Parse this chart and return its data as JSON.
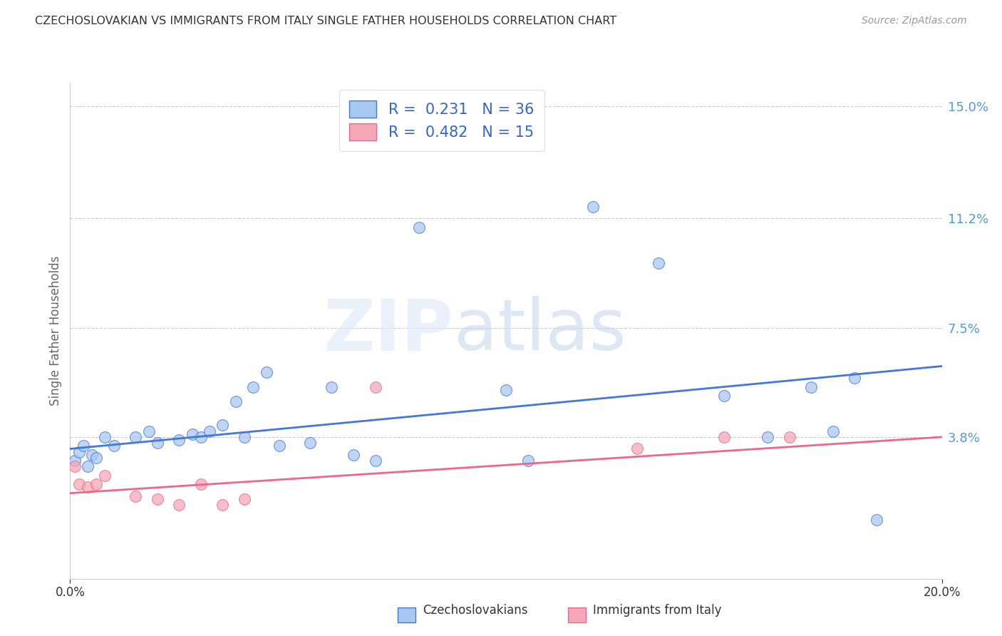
{
  "title": "CZECHOSLOVAKIAN VS IMMIGRANTS FROM ITALY SINGLE FATHER HOUSEHOLDS CORRELATION CHART",
  "source": "Source: ZipAtlas.com",
  "ylabel": "Single Father Households",
  "right_ytick_labels": [
    "15.0%",
    "11.2%",
    "7.5%",
    "3.8%"
  ],
  "right_ytick_values": [
    0.15,
    0.112,
    0.075,
    0.038
  ],
  "xmin": 0.0,
  "xmax": 0.2,
  "ymin": -0.01,
  "ymax": 0.158,
  "blue_fill": "#A8C8F0",
  "pink_fill": "#F4A8B8",
  "line_blue": "#4477DD",
  "line_pink": "#EE6688",
  "legend_R1": "0.231",
  "legend_N1": "36",
  "legend_R2": "0.482",
  "legend_N2": "15",
  "blue_scatter_x": [
    0.001,
    0.002,
    0.003,
    0.004,
    0.005,
    0.006,
    0.008,
    0.01,
    0.015,
    0.018,
    0.02,
    0.025,
    0.028,
    0.03,
    0.032,
    0.035,
    0.038,
    0.04,
    0.042,
    0.045,
    0.048,
    0.055,
    0.06,
    0.065,
    0.07,
    0.08,
    0.1,
    0.105,
    0.12,
    0.135,
    0.15,
    0.16,
    0.17,
    0.175,
    0.18,
    0.185
  ],
  "blue_scatter_y": [
    0.03,
    0.033,
    0.035,
    0.028,
    0.032,
    0.031,
    0.038,
    0.035,
    0.038,
    0.04,
    0.036,
    0.037,
    0.039,
    0.038,
    0.04,
    0.042,
    0.05,
    0.038,
    0.055,
    0.06,
    0.035,
    0.036,
    0.055,
    0.032,
    0.03,
    0.109,
    0.054,
    0.03,
    0.116,
    0.097,
    0.052,
    0.038,
    0.055,
    0.04,
    0.058,
    0.01
  ],
  "pink_scatter_x": [
    0.001,
    0.002,
    0.004,
    0.006,
    0.008,
    0.015,
    0.02,
    0.025,
    0.03,
    0.035,
    0.04,
    0.07,
    0.13,
    0.15,
    0.165
  ],
  "pink_scatter_y": [
    0.028,
    0.022,
    0.021,
    0.022,
    0.025,
    0.018,
    0.017,
    0.015,
    0.022,
    0.015,
    0.017,
    0.055,
    0.034,
    0.038,
    0.038
  ],
  "blue_line_y_start": 0.034,
  "blue_line_y_end": 0.062,
  "pink_line_y_start": 0.019,
  "pink_line_y_end": 0.038,
  "grid_color": "#CCCCCC",
  "title_color": "#333333",
  "axis_label_color": "#666666",
  "right_label_color": "#5599DD",
  "text_black": "#333333",
  "text_blue": "#3366CC",
  "background_color": "#FFFFFF"
}
